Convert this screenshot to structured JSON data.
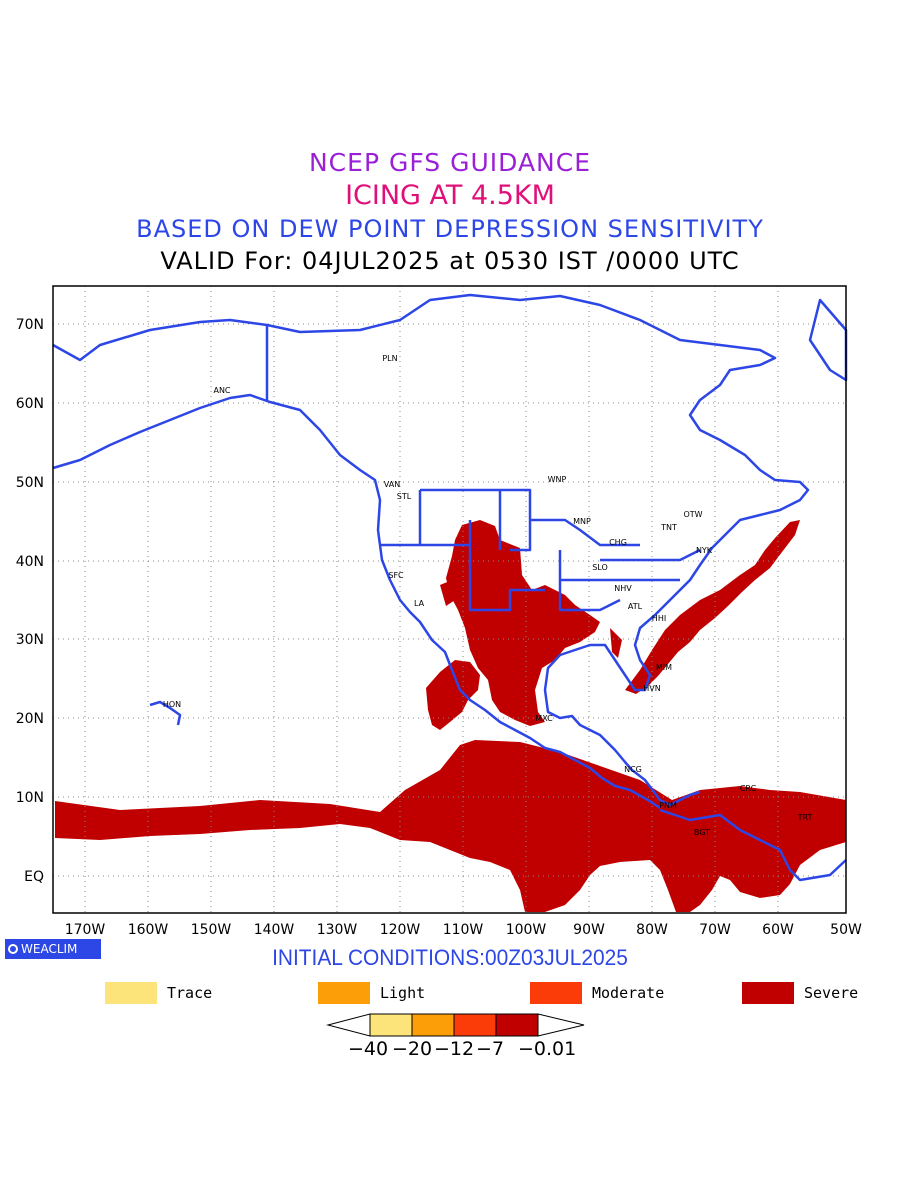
{
  "titles": {
    "line1": "NCEP GFS GUIDANCE",
    "line2": "ICING AT 4.5KM",
    "line3": "BASED ON DEW POINT DEPRESSION SENSITIVITY",
    "line4": "VALID For: 04JUL2025 at 0530 IST /0000 UTC"
  },
  "colors": {
    "title1": "#9b1fd6",
    "title2": "#e0107a",
    "title3": "#2d46e6",
    "title4": "#000000",
    "coast": "#2d46e6",
    "trace": "#fde47a",
    "light": "#fb9e08",
    "moderate": "#fb3c08",
    "severe": "#c00000"
  },
  "axes": {
    "lat_labels": [
      "70N",
      "60N",
      "50N",
      "40N",
      "30N",
      "20N",
      "10N",
      "EQ"
    ],
    "lon_labels": [
      "170W",
      "160W",
      "150W",
      "140W",
      "130W",
      "120W",
      "110W",
      "100W",
      "90W",
      "80W",
      "70W",
      "60W",
      "50W"
    ]
  },
  "stations": [
    "ANC",
    "PLN",
    "VAN",
    "STL",
    "WNP",
    "MNP",
    "OTW",
    "TNT",
    "CHG",
    "NYK",
    "SFC",
    "SLO",
    "LA",
    "NHV",
    "ATL",
    "HHI",
    "MIM",
    "HVN",
    "HON",
    "MXC",
    "NCG",
    "PNM",
    "CRC",
    "BGT",
    "TRT"
  ],
  "logo": "WEACLIM",
  "initial_conditions": "INITIAL CONDITIONS:00Z03JUL2025",
  "legend": {
    "trace": "Trace",
    "light": "Light",
    "moderate": "Moderate",
    "severe": "Severe"
  },
  "colorbar_labels": [
    "-40",
    "-20",
    "-12",
    "-7",
    "-0.01"
  ]
}
